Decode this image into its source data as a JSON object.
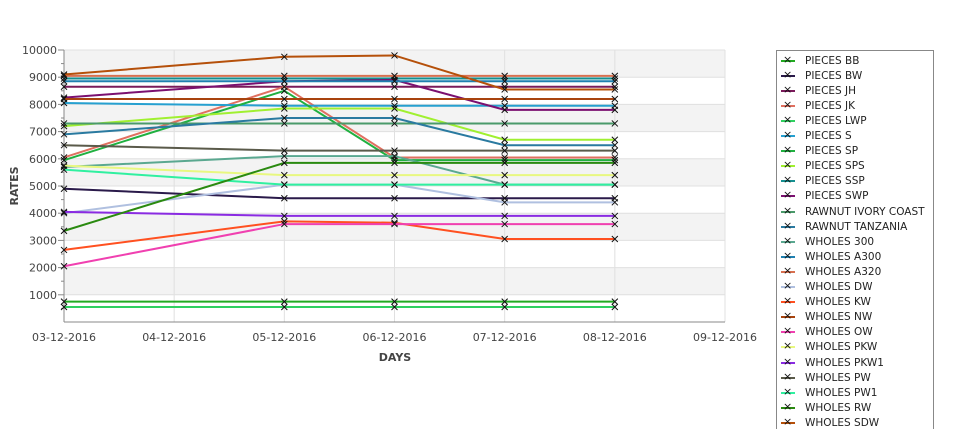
{
  "chart_data": {
    "type": "line",
    "title": "",
    "xlabel": "DAYS",
    "ylabel": "RATES",
    "ylim": [
      0,
      10000
    ],
    "yticks": [
      "1000",
      "2000",
      "3000",
      "4000",
      "5000",
      "6000",
      "7000",
      "8000",
      "9000",
      "10000"
    ],
    "xticks": [
      "03-12-2016",
      "04-12-2016",
      "05-12-2016",
      "06-12-2016",
      "07-12-2016",
      "08-12-2016",
      "09-12-2016"
    ],
    "x": [
      "03-12-2016",
      "05-12-2016",
      "06-12-2016",
      "07-12-2016",
      "08-12-2016"
    ],
    "legend_position": "right",
    "series": [
      {
        "name": "PIECES BB",
        "color": "#22aa22",
        "values": [
          750,
          750,
          750,
          750,
          750
        ]
      },
      {
        "name": "PIECES BW",
        "color": "#2a1a4a",
        "values": [
          4900,
          4550,
          4550,
          4550,
          4550
        ]
      },
      {
        "name": "PIECES JH",
        "color": "#7a1a5a",
        "values": [
          8650,
          8650,
          8650,
          8650,
          8650
        ]
      },
      {
        "name": "PIECES JK",
        "color": "#e07060",
        "values": [
          6050,
          8650,
          6050,
          6050,
          6050
        ]
      },
      {
        "name": "PIECES LWP",
        "color": "#30d060",
        "values": [
          550,
          550,
          550,
          550,
          550
        ]
      },
      {
        "name": "PIECES S",
        "color": "#26a0d0",
        "values": [
          8050,
          7950,
          7950,
          7950,
          7950
        ]
      },
      {
        "name": "PIECES SP",
        "color": "#20b040",
        "values": [
          5950,
          8500,
          5950,
          5950,
          5950
        ]
      },
      {
        "name": "PIECES SPS",
        "color": "#a0f030",
        "values": [
          7200,
          7850,
          7850,
          6700,
          6700
        ]
      },
      {
        "name": "PIECES SSP",
        "color": "#159090",
        "values": [
          8950,
          8950,
          8950,
          8950,
          8950
        ]
      },
      {
        "name": "PIECES SWP",
        "color": "#7b1070",
        "values": [
          8250,
          8850,
          8900,
          7800,
          7800
        ]
      },
      {
        "name": "RAWNUT IVORY COAST",
        "color": "#4a9a6a",
        "values": [
          7300,
          7300,
          7300,
          7300,
          7300
        ]
      },
      {
        "name": "RAWNUT TANZANIA",
        "color": "#2a7aa0",
        "values": [
          6900,
          7500,
          7500,
          6500,
          6500
        ]
      },
      {
        "name": "WHOLES 300",
        "color": "#5aa890",
        "values": [
          5700,
          6100,
          6100,
          5050,
          5050
        ]
      },
      {
        "name": "WHOLES A300",
        "color": "#1f80b0",
        "values": [
          8850,
          8850,
          8850,
          8850,
          8850
        ]
      },
      {
        "name": "WHOLES A320",
        "color": "#d87050",
        "values": [
          9050,
          9050,
          9050,
          9050,
          9050
        ]
      },
      {
        "name": "WHOLES DW",
        "color": "#b0c0e0",
        "values": [
          4000,
          5050,
          5050,
          4400,
          4400
        ]
      },
      {
        "name": "WHOLES KW",
        "color": "#ff5020",
        "values": [
          2650,
          3700,
          3650,
          3050,
          3050
        ]
      },
      {
        "name": "WHOLES NW",
        "color": "#a8430e",
        "values": [
          8200,
          8200,
          8200,
          8200,
          8200
        ]
      },
      {
        "name": "WHOLES OW",
        "color": "#f040b0",
        "values": [
          2050,
          3600,
          3600,
          3600,
          3600
        ]
      },
      {
        "name": "WHOLES PKW",
        "color": "#e8f880",
        "values": [
          5750,
          5400,
          5400,
          5400,
          5400
        ]
      },
      {
        "name": "WHOLES PKW1",
        "color": "#8a2be2",
        "values": [
          4050,
          3900,
          3900,
          3900,
          3900
        ]
      },
      {
        "name": "WHOLES PW",
        "color": "#5a5a4a",
        "values": [
          6500,
          6300,
          6300,
          6300,
          6300
        ]
      },
      {
        "name": "WHOLES PW1",
        "color": "#30f0a0",
        "values": [
          5600,
          5050,
          5050,
          5050,
          5050
        ]
      },
      {
        "name": "WHOLES RW",
        "color": "#2a8a10",
        "values": [
          3350,
          5850,
          5850,
          5850,
          5850
        ]
      },
      {
        "name": "WHOLES SDW",
        "color": "#b5500a",
        "values": [
          9100,
          9750,
          9800,
          8550,
          8550
        ]
      }
    ]
  }
}
